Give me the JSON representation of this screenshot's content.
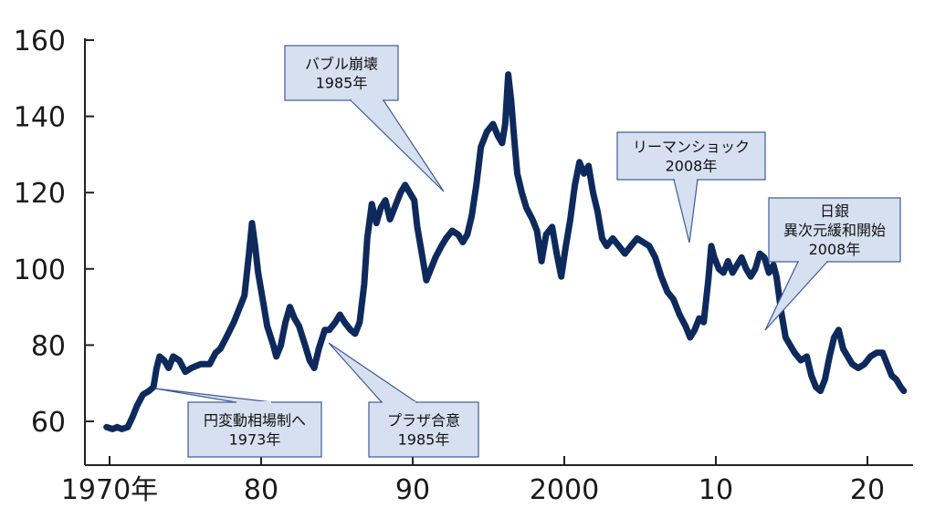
{
  "chart_data": {
    "type": "line",
    "title": "",
    "xlabel": "",
    "ylabel": "",
    "xlim": [
      1969.5,
      2023
    ],
    "ylim": [
      50,
      160
    ],
    "y_ticks": [
      60,
      80,
      100,
      120,
      140,
      160
    ],
    "x_ticks": [
      {
        "x": 1970,
        "label": "1970年"
      },
      {
        "x": 1980,
        "label": "80"
      },
      {
        "x": 1990,
        "label": "90"
      },
      {
        "x": 2000,
        "label": "2000"
      },
      {
        "x": 2010,
        "label": "10"
      },
      {
        "x": 2020,
        "label": "20"
      }
    ],
    "line_color": "#0e2a5c",
    "series": [
      {
        "name": "",
        "points": [
          [
            1969.8,
            58.5
          ],
          [
            1970.2,
            58
          ],
          [
            1970.5,
            58.5
          ],
          [
            1970.8,
            58
          ],
          [
            1971.2,
            58.5
          ],
          [
            1971.5,
            61
          ],
          [
            1971.8,
            64
          ],
          [
            1972.2,
            67
          ],
          [
            1972.6,
            68
          ],
          [
            1972.9,
            69
          ],
          [
            1973.1,
            74
          ],
          [
            1973.3,
            77
          ],
          [
            1973.6,
            76
          ],
          [
            1973.9,
            74
          ],
          [
            1974.2,
            77
          ],
          [
            1974.6,
            76
          ],
          [
            1975.0,
            73
          ],
          [
            1975.4,
            74
          ],
          [
            1976.0,
            75
          ],
          [
            1976.6,
            75
          ],
          [
            1977.0,
            78
          ],
          [
            1977.3,
            79
          ],
          [
            1977.7,
            82
          ],
          [
            1978.2,
            86
          ],
          [
            1978.6,
            90
          ],
          [
            1978.9,
            93
          ],
          [
            1979.2,
            104
          ],
          [
            1979.4,
            112
          ],
          [
            1979.6,
            106
          ],
          [
            1979.8,
            99
          ],
          [
            1980.1,
            92
          ],
          [
            1980.4,
            85
          ],
          [
            1980.8,
            80
          ],
          [
            1981.0,
            77
          ],
          [
            1981.3,
            80
          ],
          [
            1981.6,
            86
          ],
          [
            1981.9,
            90
          ],
          [
            1982.2,
            87
          ],
          [
            1982.5,
            85
          ],
          [
            1982.9,
            80
          ],
          [
            1983.2,
            76
          ],
          [
            1983.5,
            74
          ],
          [
            1983.8,
            79
          ],
          [
            1984.2,
            84
          ],
          [
            1984.5,
            84
          ],
          [
            1984.9,
            86
          ],
          [
            1985.2,
            88
          ],
          [
            1985.5,
            86
          ],
          [
            1985.9,
            84
          ],
          [
            1986.2,
            83
          ],
          [
            1986.5,
            86
          ],
          [
            1986.8,
            96
          ],
          [
            1987.0,
            108
          ],
          [
            1987.3,
            117
          ],
          [
            1987.6,
            112
          ],
          [
            1987.9,
            116
          ],
          [
            1988.2,
            118
          ],
          [
            1988.5,
            113
          ],
          [
            1988.8,
            116
          ],
          [
            1989.2,
            120
          ],
          [
            1989.5,
            122
          ],
          [
            1989.8,
            120
          ],
          [
            1990.1,
            118
          ],
          [
            1990.3,
            111
          ],
          [
            1990.6,
            104
          ],
          [
            1990.9,
            97
          ],
          [
            1991.2,
            100
          ],
          [
            1991.5,
            103
          ],
          [
            1991.9,
            106
          ],
          [
            1992.2,
            108
          ],
          [
            1992.6,
            110
          ],
          [
            1993.0,
            109
          ],
          [
            1993.3,
            107
          ],
          [
            1993.6,
            109
          ],
          [
            1993.9,
            114
          ],
          [
            1994.2,
            122
          ],
          [
            1994.5,
            132
          ],
          [
            1994.9,
            136
          ],
          [
            1995.3,
            138
          ],
          [
            1995.6,
            135
          ],
          [
            1995.9,
            133
          ],
          [
            1996.1,
            138
          ],
          [
            1996.3,
            151
          ],
          [
            1996.5,
            144
          ],
          [
            1996.7,
            134
          ],
          [
            1996.9,
            125
          ],
          [
            1997.2,
            120
          ],
          [
            1997.5,
            116
          ],
          [
            1997.9,
            113
          ],
          [
            1998.2,
            110
          ],
          [
            1998.5,
            102
          ],
          [
            1998.8,
            109
          ],
          [
            1999.2,
            111
          ],
          [
            1999.5,
            104
          ],
          [
            1999.8,
            98
          ],
          [
            2000.1,
            106
          ],
          [
            2000.4,
            113
          ],
          [
            2000.7,
            122
          ],
          [
            2001.0,
            128
          ],
          [
            2001.3,
            125
          ],
          [
            2001.6,
            127
          ],
          [
            2001.9,
            120
          ],
          [
            2002.2,
            115
          ],
          [
            2002.5,
            108
          ],
          [
            2002.8,
            106
          ],
          [
            2003.2,
            108
          ],
          [
            2003.6,
            106
          ],
          [
            2004.0,
            104
          ],
          [
            2004.4,
            106
          ],
          [
            2004.8,
            108
          ],
          [
            2005.2,
            107
          ],
          [
            2005.6,
            106
          ],
          [
            2006.0,
            103
          ],
          [
            2006.4,
            98
          ],
          [
            2006.8,
            94
          ],
          [
            2007.2,
            92
          ],
          [
            2007.6,
            88
          ],
          [
            2008.0,
            85
          ],
          [
            2008.3,
            82
          ],
          [
            2008.6,
            84
          ],
          [
            2008.9,
            87
          ],
          [
            2009.2,
            86
          ],
          [
            2009.5,
            97
          ],
          [
            2009.7,
            106
          ],
          [
            2009.9,
            103
          ],
          [
            2010.2,
            100
          ],
          [
            2010.5,
            99
          ],
          [
            2010.8,
            102
          ],
          [
            2011.1,
            99
          ],
          [
            2011.4,
            101
          ],
          [
            2011.7,
            103
          ],
          [
            2012.0,
            100
          ],
          [
            2012.3,
            98
          ],
          [
            2012.6,
            100
          ],
          [
            2012.9,
            104
          ],
          [
            2013.2,
            103
          ],
          [
            2013.5,
            99
          ],
          [
            2013.8,
            101
          ],
          [
            2014.0,
            98
          ],
          [
            2014.3,
            89
          ],
          [
            2014.6,
            82
          ],
          [
            2014.9,
            80
          ],
          [
            2015.2,
            78
          ],
          [
            2015.6,
            76
          ],
          [
            2016.0,
            77
          ],
          [
            2016.3,
            72
          ],
          [
            2016.6,
            69
          ],
          [
            2016.9,
            68
          ],
          [
            2017.2,
            71
          ],
          [
            2017.5,
            77
          ],
          [
            2017.8,
            82
          ],
          [
            2018.1,
            84
          ],
          [
            2018.4,
            79
          ],
          [
            2018.7,
            77
          ],
          [
            2019.0,
            75
          ],
          [
            2019.4,
            74
          ],
          [
            2019.8,
            75
          ],
          [
            2020.2,
            77
          ],
          [
            2020.6,
            78
          ],
          [
            2021.0,
            78
          ],
          [
            2021.3,
            75
          ],
          [
            2021.6,
            72
          ],
          [
            2021.9,
            71
          ],
          [
            2022.2,
            69
          ],
          [
            2022.4,
            68
          ]
        ]
      }
    ],
    "annotations": [
      {
        "lines": [
          "円変動相場制へ",
          "1973年"
        ]
      },
      {
        "lines": [
          "プラザ合意",
          "1985年"
        ]
      },
      {
        "lines": [
          "バブル崩壊",
          "1985年"
        ]
      },
      {
        "lines": [
          "リーマンショック",
          "2008年"
        ]
      },
      {
        "lines": [
          "日銀",
          "異次元緩和開始",
          "2008年"
        ]
      }
    ]
  }
}
